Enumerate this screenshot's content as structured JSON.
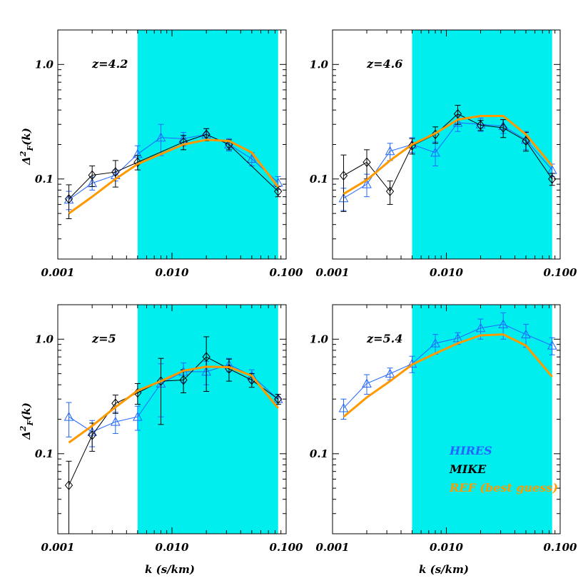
{
  "colors": {
    "shade": "#00eeee",
    "hires": "#2266ff",
    "mike": "#000000",
    "ref": "#ff9900"
  },
  "axes": {
    "xlabel": "k (s/km)",
    "ylabel_main": "Δ",
    "ylabel_sup": "2",
    "ylabel_sub": "F",
    "ylabel_tail": "(k)",
    "x_scale": "log",
    "y_scale": "log",
    "xlim": [
      0.001,
      0.1
    ],
    "x_tick_values": [
      0.001,
      0.01,
      0.1
    ],
    "x_tick_labels": [
      "0.001",
      "0.010",
      "0.100"
    ],
    "y_tick_values": [
      0.1,
      1.0
    ],
    "y_tick_labels": [
      "0.1",
      "1.0"
    ]
  },
  "legend": {
    "position": "bottom-right of panel z=5.4",
    "entries": [
      {
        "text": "HIRES",
        "color": "#2266ff"
      },
      {
        "text": "MIKE",
        "color": "#000000"
      },
      {
        "text": "REF (best guess)",
        "color": "#ff9900"
      }
    ]
  },
  "chart_data": [
    {
      "type": "line",
      "label": "z=4.2",
      "ylim": [
        0.02,
        2.0
      ],
      "shaded_x": [
        0.005,
        0.085
      ],
      "x": [
        0.00125,
        0.002,
        0.0032,
        0.005,
        0.008,
        0.0126,
        0.02,
        0.0316,
        0.05,
        0.085
      ],
      "series": [
        {
          "name": "HIRES",
          "marker": "triangle",
          "y": [
            0.066,
            0.092,
            0.108,
            0.165,
            0.23,
            0.225,
            0.245,
            0.2,
            0.15,
            0.093
          ],
          "err": [
            0.012,
            0.012,
            0.012,
            0.03,
            0.07,
            0.03,
            0.03,
            0.025,
            0.02,
            0.012
          ]
        },
        {
          "name": "MIKE",
          "marker": "diamond",
          "x": [
            0.00125,
            0.002,
            0.0032,
            0.005,
            0.0126,
            0.02,
            0.0316,
            0.085
          ],
          "y": [
            0.067,
            0.108,
            0.115,
            0.14,
            0.21,
            0.245,
            0.2,
            0.078
          ],
          "err": [
            0.022,
            0.022,
            0.03,
            0.02,
            0.03,
            0.03,
            0.02,
            0.008
          ]
        },
        {
          "name": "REF (best guess)",
          "marker": "none",
          "x": [
            0.00125,
            0.002,
            0.0032,
            0.005,
            0.008,
            0.0126,
            0.02,
            0.0316,
            0.05,
            0.085
          ],
          "y": [
            0.05,
            0.07,
            0.1,
            0.135,
            0.165,
            0.2,
            0.22,
            0.215,
            0.17,
            0.085
          ]
        }
      ]
    },
    {
      "type": "line",
      "label": "z=4.6",
      "ylim": [
        0.02,
        2.0
      ],
      "shaded_x": [
        0.005,
        0.085
      ],
      "x": [
        0.00125,
        0.002,
        0.0032,
        0.005,
        0.008,
        0.0126,
        0.02,
        0.0316,
        0.05,
        0.085
      ],
      "series": [
        {
          "name": "HIRES",
          "marker": "triangle",
          "y": [
            0.068,
            0.09,
            0.175,
            0.2,
            0.17,
            0.31,
            0.3,
            0.29,
            0.22,
            0.12
          ],
          "err": [
            0.015,
            0.02,
            0.03,
            0.03,
            0.04,
            0.05,
            0.04,
            0.04,
            0.04,
            0.015
          ]
        },
        {
          "name": "MIKE",
          "marker": "diamond",
          "y": [
            0.107,
            0.14,
            0.078,
            0.195,
            0.245,
            0.37,
            0.295,
            0.28,
            0.215,
            0.1
          ],
          "err": [
            0.055,
            0.04,
            0.018,
            0.03,
            0.04,
            0.07,
            0.03,
            0.05,
            0.04,
            0.012
          ]
        },
        {
          "name": "REF (best guess)",
          "marker": "none",
          "y": [
            0.074,
            0.098,
            0.145,
            0.2,
            0.25,
            0.33,
            0.355,
            0.355,
            0.245,
            0.13
          ]
        }
      ]
    },
    {
      "type": "line",
      "label": "z=5",
      "ylim": [
        0.02,
        2.0
      ],
      "shaded_x": [
        0.005,
        0.085
      ],
      "x": [
        0.00125,
        0.002,
        0.0032,
        0.005,
        0.008,
        0.0126,
        0.02,
        0.0316,
        0.05,
        0.085
      ],
      "series": [
        {
          "name": "HIRES",
          "marker": "triangle",
          "y": [
            0.21,
            0.155,
            0.19,
            0.21,
            0.41,
            0.52,
            0.52,
            0.6,
            0.48,
            0.3
          ],
          "err": [
            0.07,
            0.04,
            0.04,
            0.05,
            0.2,
            0.1,
            0.12,
            0.08,
            0.06,
            0.03
          ]
        },
        {
          "name": "MIKE",
          "marker": "diamond",
          "y": [
            0.053,
            0.145,
            0.275,
            0.34,
            0.43,
            0.44,
            0.7,
            0.55,
            0.44,
            0.3
          ],
          "err": [
            0.033,
            0.04,
            0.05,
            0.07,
            0.25,
            0.1,
            0.35,
            0.12,
            0.06,
            0.03
          ]
        },
        {
          "name": "REF (best guess)",
          "marker": "none",
          "y": [
            0.125,
            0.175,
            0.255,
            0.355,
            0.43,
            0.53,
            0.575,
            0.57,
            0.48,
            0.25
          ]
        }
      ]
    },
    {
      "type": "line",
      "label": "z=5.4",
      "ylim": [
        0.02,
        2.0
      ],
      "shaded_x": [
        0.005,
        0.085
      ],
      "x": [
        0.00125,
        0.002,
        0.0032,
        0.005,
        0.008,
        0.0126,
        0.02,
        0.0316,
        0.05,
        0.085
      ],
      "series": [
        {
          "name": "HIRES",
          "marker": "triangle",
          "y": [
            0.25,
            0.41,
            0.5,
            0.61,
            0.92,
            1.02,
            1.25,
            1.35,
            1.1,
            0.88
          ],
          "err": [
            0.05,
            0.08,
            0.06,
            0.1,
            0.18,
            0.12,
            0.25,
            0.35,
            0.25,
            0.15
          ]
        },
        {
          "name": "REF (best guess)",
          "marker": "none",
          "y": [
            0.21,
            0.31,
            0.43,
            0.6,
            0.75,
            0.92,
            1.08,
            1.1,
            0.88,
            0.47
          ]
        }
      ]
    }
  ]
}
